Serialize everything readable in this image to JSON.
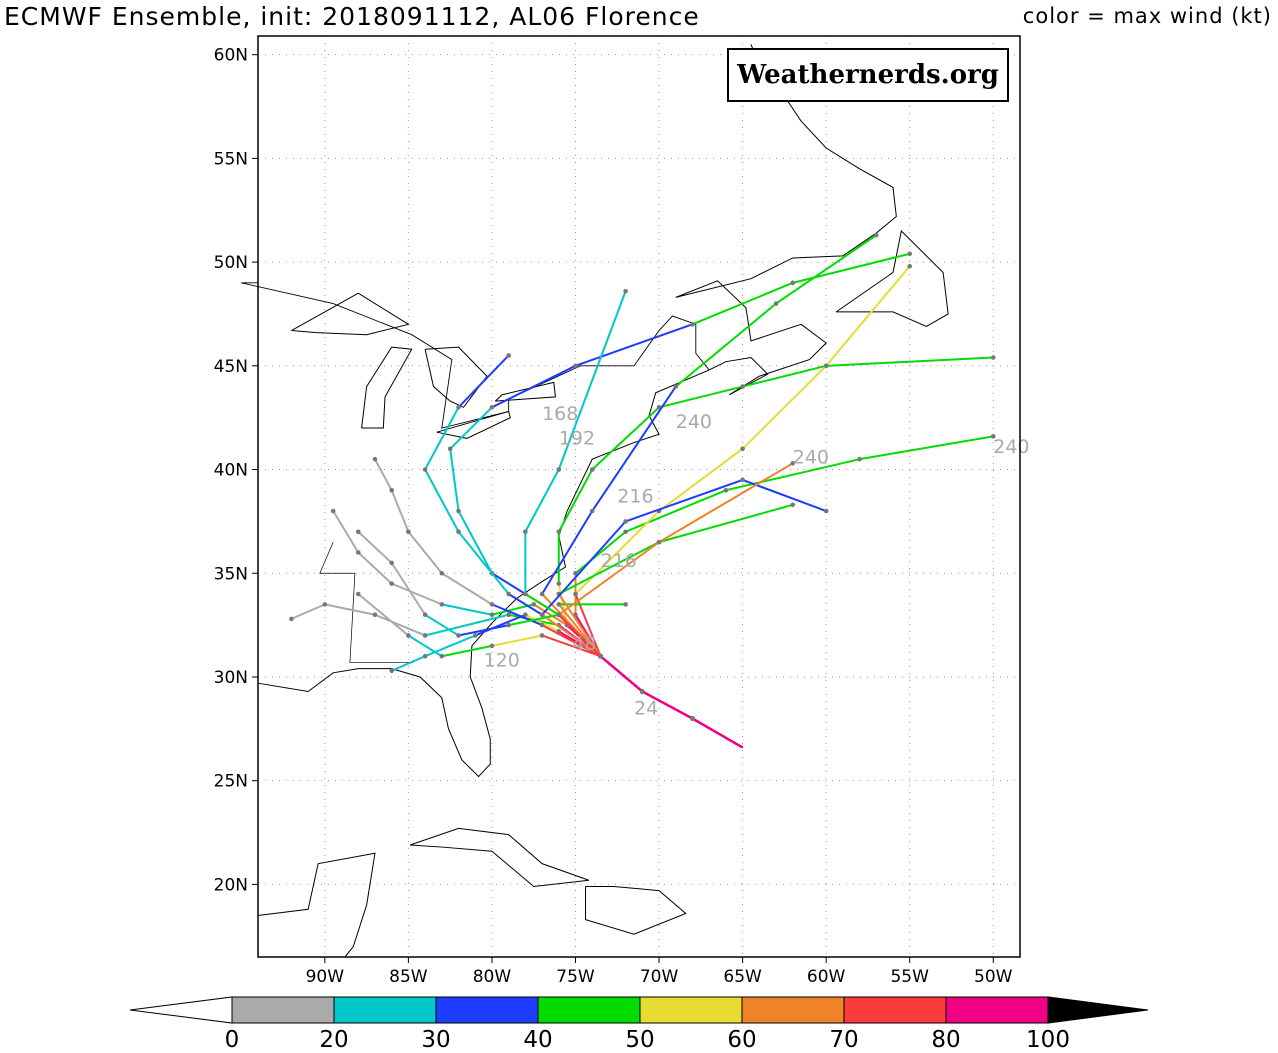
{
  "title": "ECMWF Ensemble, init: 2018091112, AL06 Florence",
  "subtitle": "color = max wind (kt)",
  "logo": "Weathernerds.org",
  "map": {
    "lon_range": [
      -94,
      -48.4
    ],
    "lat_range": [
      16.5,
      60.9
    ],
    "lat_ticks": [
      {
        "v": 20,
        "l": "20N"
      },
      {
        "v": 25,
        "l": "25N"
      },
      {
        "v": 30,
        "l": "30N"
      },
      {
        "v": 35,
        "l": "35N"
      },
      {
        "v": 40,
        "l": "40N"
      },
      {
        "v": 45,
        "l": "45N"
      },
      {
        "v": 50,
        "l": "50N"
      },
      {
        "v": 55,
        "l": "55N"
      },
      {
        "v": 60,
        "l": "60N"
      }
    ],
    "lon_ticks": [
      {
        "v": -90,
        "l": "90W"
      },
      {
        "v": -85,
        "l": "85W"
      },
      {
        "v": -80,
        "l": "80W"
      },
      {
        "v": -75,
        "l": "75W"
      },
      {
        "v": -70,
        "l": "70W"
      },
      {
        "v": -65,
        "l": "65W"
      },
      {
        "v": -60,
        "l": "60W"
      },
      {
        "v": -55,
        "l": "55W"
      },
      {
        "v": -50,
        "l": "50W"
      }
    ],
    "grid": true
  },
  "colorbar": {
    "levels": [
      "0",
      "20",
      "30",
      "40",
      "50",
      "60",
      "70",
      "80",
      "100"
    ],
    "colors": [
      "#aaaaaa",
      "#00c8c8",
      "#1e3cff",
      "#00dc00",
      "#e6dc32",
      "#f08228",
      "#fa3c3c",
      "#f00082"
    ],
    "under": "#ffffff",
    "over": "#000000"
  },
  "tracks": [
    {
      "pts": [
        [
          -65,
          26.6
        ],
        [
          -68,
          28
        ],
        [
          -71,
          29.3
        ],
        [
          -73.5,
          31
        ],
        [
          -75.5,
          32.5
        ],
        [
          -77.5,
          33.5
        ],
        [
          -80,
          33
        ],
        [
          -83,
          33.5
        ],
        [
          -86,
          34.5
        ],
        [
          -88,
          36
        ],
        [
          -89.5,
          38
        ]
      ],
      "w": [
        90,
        90,
        90,
        85,
        80,
        60,
        40,
        25,
        18,
        15,
        15
      ]
    },
    {
      "pts": [
        [
          -65,
          26.6
        ],
        [
          -68,
          28
        ],
        [
          -71,
          29.3
        ],
        [
          -73.5,
          31
        ],
        [
          -76,
          33
        ],
        [
          -78,
          34
        ],
        [
          -80,
          35
        ],
        [
          -82,
          38
        ],
        [
          -82.5,
          41
        ],
        [
          -80,
          43
        ],
        [
          -75,
          45
        ],
        [
          -68,
          47
        ],
        [
          -62,
          49
        ],
        [
          -55,
          50.4
        ]
      ],
      "w": [
        90,
        90,
        90,
        85,
        75,
        55,
        35,
        25,
        25,
        25,
        35,
        35,
        45,
        45
      ]
    },
    {
      "pts": [
        [
          -65,
          26.6
        ],
        [
          -68,
          28
        ],
        [
          -71,
          29.3
        ],
        [
          -73.5,
          31
        ],
        [
          -75.5,
          32.5
        ],
        [
          -76,
          34.5
        ],
        [
          -76,
          37
        ],
        [
          -74,
          40
        ],
        [
          -70,
          43
        ],
        [
          -65,
          44
        ],
        [
          -60,
          45
        ],
        [
          -50,
          45.4
        ]
      ],
      "w": [
        90,
        90,
        90,
        85,
        80,
        55,
        45,
        45,
        45,
        45,
        45,
        45
      ]
    },
    {
      "pts": [
        [
          -65,
          26.6
        ],
        [
          -68,
          28
        ],
        [
          -71,
          29.3
        ],
        [
          -73.5,
          31
        ],
        [
          -75,
          33
        ],
        [
          -75,
          35
        ],
        [
          -72,
          37
        ],
        [
          -66,
          39
        ],
        [
          -58,
          40.5
        ],
        [
          -50,
          41.6
        ]
      ],
      "w": [
        90,
        90,
        90,
        85,
        80,
        60,
        45,
        45,
        45,
        45
      ]
    },
    {
      "pts": [
        [
          -65,
          26.6
        ],
        [
          -68,
          28
        ],
        [
          -71,
          29.3
        ],
        [
          -73.5,
          31
        ],
        [
          -76,
          32.5
        ],
        [
          -79,
          33
        ],
        [
          -84,
          32
        ],
        [
          -87,
          33
        ],
        [
          -90,
          33.5
        ],
        [
          -92,
          32.8
        ]
      ],
      "w": [
        90,
        90,
        90,
        85,
        80,
        45,
        25,
        18,
        15,
        15
      ]
    },
    {
      "pts": [
        [
          -65,
          26.6
        ],
        [
          -68,
          28
        ],
        [
          -71,
          29.3
        ],
        [
          -73.5,
          31
        ],
        [
          -76,
          32.2
        ],
        [
          -78,
          33
        ],
        [
          -81,
          32
        ],
        [
          -84,
          31
        ],
        [
          -86,
          30.3
        ]
      ],
      "w": [
        90,
        90,
        90,
        85,
        80,
        50,
        35,
        25,
        22
      ]
    },
    {
      "pts": [
        [
          -65,
          26.6
        ],
        [
          -68,
          28
        ],
        [
          -71,
          29.3
        ],
        [
          -73.5,
          31
        ],
        [
          -75,
          34
        ],
        [
          -70,
          38
        ],
        [
          -65,
          41
        ],
        [
          -60,
          45
        ],
        [
          -55,
          49.8
        ]
      ],
      "w": [
        90,
        90,
        90,
        85,
        70,
        55,
        55,
        55,
        55
      ]
    },
    {
      "pts": [
        [
          -65,
          26.6
        ],
        [
          -68,
          28
        ],
        [
          -71,
          29.3
        ],
        [
          -73.5,
          31
        ],
        [
          -76,
          33.5
        ],
        [
          -72,
          33.5
        ]
      ],
      "w": [
        90,
        90,
        90,
        85,
        60,
        45
      ]
    },
    {
      "pts": [
        [
          -65,
          26.6
        ],
        [
          -68,
          28
        ],
        [
          -71,
          29.3
        ],
        [
          -73.5,
          31
        ],
        [
          -76,
          34
        ],
        [
          -70,
          36.5
        ],
        [
          -62,
          38.3
        ]
      ],
      "w": [
        90,
        90,
        90,
        85,
        60,
        45,
        45
      ]
    },
    {
      "pts": [
        [
          -65,
          26.6
        ],
        [
          -68,
          28
        ],
        [
          -71,
          29.3
        ],
        [
          -73.5,
          31
        ],
        [
          -77,
          34
        ],
        [
          -74,
          38
        ],
        [
          -69,
          44
        ],
        [
          -63,
          48
        ],
        [
          -57,
          51.3
        ]
      ],
      "w": [
        90,
        90,
        90,
        85,
        60,
        35,
        35,
        45,
        45
      ]
    },
    {
      "pts": [
        [
          -65,
          26.6
        ],
        [
          -68,
          28
        ],
        [
          -71,
          29.3
        ],
        [
          -73.5,
          31
        ],
        [
          -77,
          33
        ],
        [
          -79,
          34
        ],
        [
          -82,
          37
        ],
        [
          -84,
          40
        ],
        [
          -82,
          43
        ],
        [
          -79,
          45.5
        ]
      ],
      "w": [
        90,
        90,
        90,
        85,
        60,
        30,
        25,
        25,
        25,
        35
      ]
    },
    {
      "pts": [
        [
          -65,
          26.6
        ],
        [
          -68,
          28
        ],
        [
          -71,
          29.3
        ],
        [
          -73.5,
          31
        ],
        [
          -77,
          33
        ],
        [
          -72,
          37.5
        ],
        [
          -65,
          39.5
        ],
        [
          -60,
          38
        ]
      ],
      "w": [
        90,
        90,
        90,
        85,
        60,
        35,
        35,
        35
      ]
    },
    {
      "pts": [
        [
          -65,
          26.6
        ],
        [
          -68,
          28
        ],
        [
          -71,
          29.3
        ],
        [
          -73.5,
          31
        ],
        [
          -76,
          33
        ],
        [
          -70,
          36.5
        ],
        [
          -62,
          40.3
        ]
      ],
      "w": [
        90,
        90,
        90,
        85,
        75,
        65,
        65
      ]
    },
    {
      "pts": [
        [
          -65,
          26.6
        ],
        [
          -68,
          28
        ],
        [
          -71,
          29.3
        ],
        [
          -73.5,
          31
        ],
        [
          -77,
          32.5
        ],
        [
          -80,
          33.5
        ],
        [
          -83,
          35
        ],
        [
          -85,
          37
        ],
        [
          -86,
          39
        ],
        [
          -87,
          40.5
        ]
      ],
      "w": [
        90,
        90,
        90,
        85,
        70,
        35,
        18,
        15,
        15,
        15
      ]
    },
    {
      "pts": [
        [
          -65,
          26.6
        ],
        [
          -68,
          28
        ],
        [
          -71,
          29.3
        ],
        [
          -73.5,
          31
        ],
        [
          -76,
          33
        ],
        [
          -78,
          34
        ],
        [
          -78,
          37
        ],
        [
          -76,
          40
        ],
        [
          -72,
          48.6
        ]
      ],
      "w": [
        90,
        90,
        90,
        85,
        70,
        40,
        25,
        25,
        25
      ]
    },
    {
      "pts": [
        [
          -65,
          26.6
        ],
        [
          -68,
          28
        ],
        [
          -71,
          29.3
        ],
        [
          -73.5,
          31
        ],
        [
          -77,
          32
        ],
        [
          -80,
          31.5
        ],
        [
          -83,
          31
        ],
        [
          -85,
          32
        ],
        [
          -88,
          34
        ]
      ],
      "w": [
        90,
        90,
        90,
        85,
        70,
        55,
        45,
        25,
        18
      ]
    },
    {
      "pts": [
        [
          -65,
          26.6
        ],
        [
          -68,
          28
        ],
        [
          -71,
          29.3
        ],
        [
          -73.5,
          31
        ],
        [
          -76,
          33
        ],
        [
          -79,
          32.5
        ],
        [
          -82,
          32
        ],
        [
          -84,
          33
        ],
        [
          -86,
          35.5
        ],
        [
          -88,
          37
        ]
      ],
      "w": [
        90,
        90,
        90,
        85,
        75,
        45,
        35,
        25,
        18,
        15
      ]
    }
  ],
  "labels": [
    {
      "t": "240",
      "lon": -69,
      "lat": 42
    },
    {
      "t": "240",
      "lon": -62,
      "lat": 40.3
    },
    {
      "t": "240",
      "lon": -50,
      "lat": 40.8
    },
    {
      "t": "216",
      "lon": -73.5,
      "lat": 35.3
    },
    {
      "t": "216",
      "lon": -72.5,
      "lat": 38.4
    },
    {
      "t": "192",
      "lon": -76,
      "lat": 41.2
    },
    {
      "t": "168",
      "lon": -77,
      "lat": 42.4
    },
    {
      "t": "120",
      "lon": -80.5,
      "lat": 30.5
    },
    {
      "t": "24",
      "lon": -71.5,
      "lat": 28.2
    },
    {
      "t": "48",
      "lon": -75.2,
      "lat": 31.3
    }
  ]
}
